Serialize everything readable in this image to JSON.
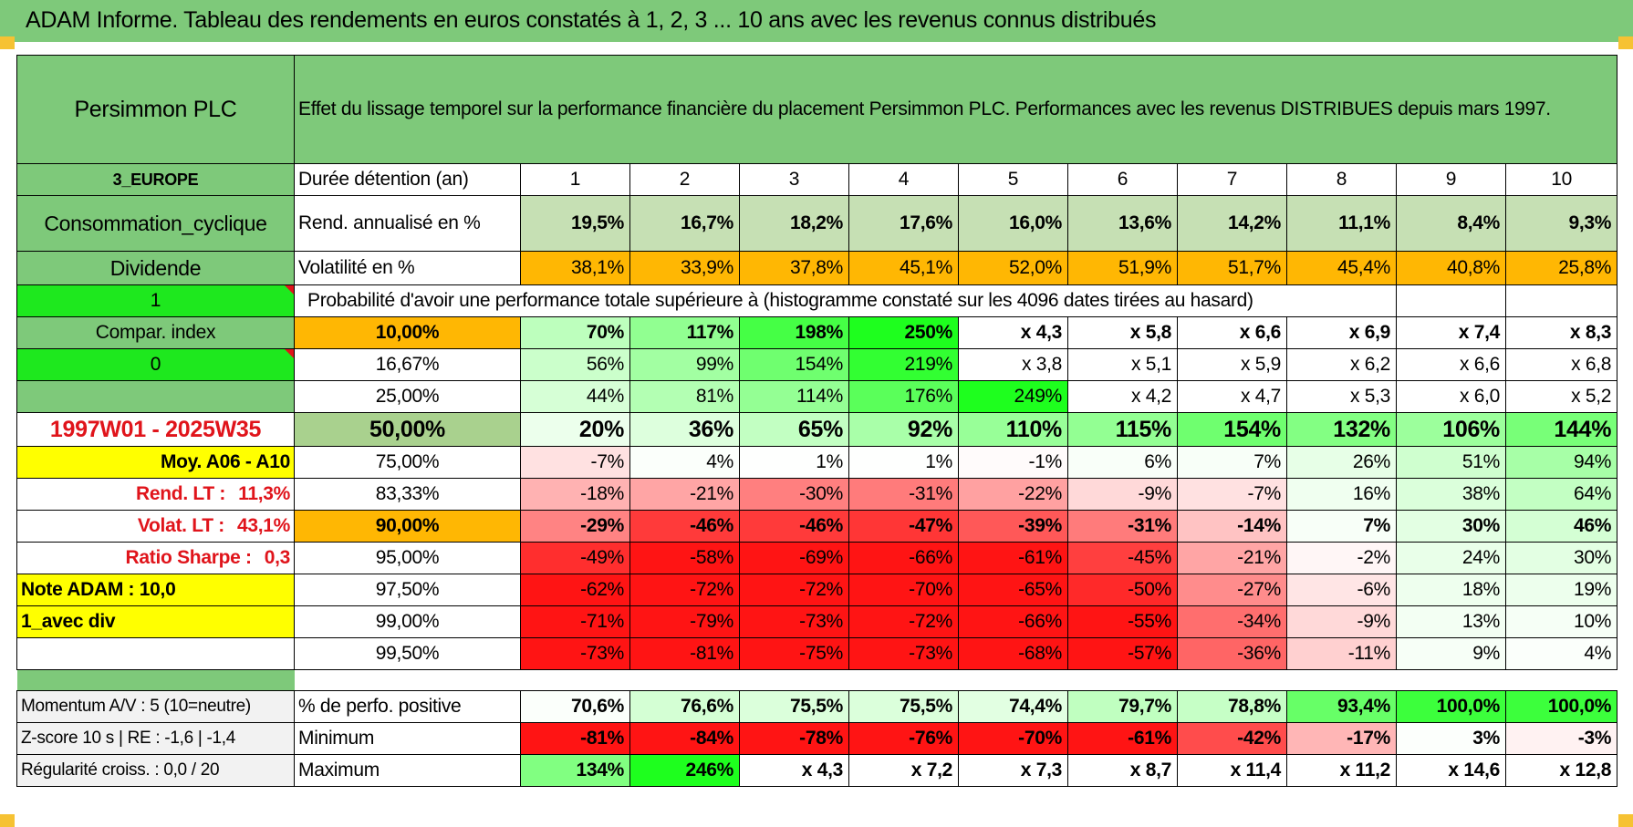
{
  "title": "ADAM Informe. Tableau des rendements en euros constatés à 1, 2, 3 ... 10 ans avec les revenus connus distribués",
  "left": {
    "name": "Persimmon PLC",
    "region": "3_EUROPE",
    "sector": "Consommation_cyclique",
    "type": "Dividende",
    "val1": "1",
    "compar_label": "Compar. index",
    "val0": "0",
    "period": "1997W01 - 2025W35",
    "moy": "Moy. A06 - A10",
    "rend_lt_label": "Rend. LT :",
    "rend_lt_val": "11,3%",
    "volat_lt_label": "Volat. LT :",
    "volat_lt_val": "43,1%",
    "sharpe_label": "Ratio Sharpe :",
    "sharpe_val": "0,3",
    "note": "Note ADAM : 10,0",
    "avec_div": "1_avec div",
    "momentum": "Momentum A/V : 5 (10=neutre)",
    "zscore": "Z-score 10 s | RE : -1,6 | -1,4",
    "regularite": "Régularité croiss. : 0,0 / 20"
  },
  "header_text": "Effet du lissage temporel sur la performance financière du placement Persimmon PLC. Performances avec les revenus DISTRIBUES depuis mars 1997.",
  "duree_label": "Durée détention (an)",
  "years": [
    "1",
    "2",
    "3",
    "4",
    "5",
    "6",
    "7",
    "8",
    "9",
    "10"
  ],
  "rend_label": "Rend. annualisé en %",
  "rend": [
    "19,5%",
    "16,7%",
    "18,2%",
    "17,6%",
    "16,0%",
    "13,6%",
    "14,2%",
    "11,1%",
    "8,4%",
    "9,3%"
  ],
  "vol_label": "Volatilité en %",
  "vol": [
    "38,1%",
    "33,9%",
    "37,8%",
    "45,1%",
    "52,0%",
    "51,9%",
    "51,7%",
    "45,4%",
    "40,8%",
    "25,8%"
  ],
  "prob_label": "Probabilité d'avoir une performance totale supérieure à (histogramme constaté sur les 4096 dates tirées au hasard)",
  "prob_rows": [
    {
      "pct": "10,00%",
      "vals": [
        "70%",
        "117%",
        "198%",
        "250%",
        "x 4,3",
        "x 5,8",
        "x 6,6",
        "x 6,9",
        "x 7,4",
        "x 8,3"
      ]
    },
    {
      "pct": "16,67%",
      "vals": [
        "56%",
        "99%",
        "154%",
        "219%",
        "x 3,8",
        "x 5,1",
        "x 5,9",
        "x 6,2",
        "x 6,6",
        "x 6,8"
      ]
    },
    {
      "pct": "25,00%",
      "vals": [
        "44%",
        "81%",
        "114%",
        "176%",
        "249%",
        "x 4,2",
        "x 4,7",
        "x 5,3",
        "x 6,0",
        "x 5,2"
      ]
    },
    {
      "pct": "50,00%",
      "vals": [
        "20%",
        "36%",
        "65%",
        "92%",
        "110%",
        "115%",
        "154%",
        "132%",
        "106%",
        "144%"
      ]
    },
    {
      "pct": "75,00%",
      "vals": [
        "-7%",
        "4%",
        "1%",
        "1%",
        "-1%",
        "6%",
        "7%",
        "26%",
        "51%",
        "94%"
      ]
    },
    {
      "pct": "83,33%",
      "vals": [
        "-18%",
        "-21%",
        "-30%",
        "-31%",
        "-22%",
        "-9%",
        "-7%",
        "16%",
        "38%",
        "64%"
      ]
    },
    {
      "pct": "90,00%",
      "vals": [
        "-29%",
        "-46%",
        "-46%",
        "-47%",
        "-39%",
        "-31%",
        "-14%",
        "7%",
        "30%",
        "46%"
      ]
    },
    {
      "pct": "95,00%",
      "vals": [
        "-49%",
        "-58%",
        "-69%",
        "-66%",
        "-61%",
        "-45%",
        "-21%",
        "-2%",
        "24%",
        "30%"
      ]
    },
    {
      "pct": "97,50%",
      "vals": [
        "-62%",
        "-72%",
        "-72%",
        "-70%",
        "-65%",
        "-50%",
        "-27%",
        "-6%",
        "18%",
        "19%"
      ]
    },
    {
      "pct": "99,00%",
      "vals": [
        "-71%",
        "-79%",
        "-73%",
        "-72%",
        "-66%",
        "-55%",
        "-34%",
        "-9%",
        "13%",
        "10%"
      ]
    },
    {
      "pct": "99,50%",
      "vals": [
        "-73%",
        "-81%",
        "-75%",
        "-73%",
        "-68%",
        "-57%",
        "-36%",
        "-11%",
        "9%",
        "4%"
      ]
    }
  ],
  "pos_label": "% de perfo. positive",
  "pos": [
    "70,6%",
    "76,6%",
    "75,5%",
    "75,5%",
    "74,4%",
    "79,7%",
    "78,8%",
    "93,4%",
    "100,0%",
    "100,0%"
  ],
  "min_label": "Minimum",
  "min": [
    "-81%",
    "-84%",
    "-78%",
    "-76%",
    "-70%",
    "-61%",
    "-42%",
    "-17%",
    "3%",
    "-3%"
  ],
  "max_label": "Maximum",
  "max": [
    "134%",
    "246%",
    "x 4,3",
    "x 7,2",
    "x 7,3",
    "x 8,7",
    "x 11,4",
    "x 11,2",
    "x 14,6",
    "x 12,8"
  ],
  "colors": {
    "title_green": "#7ec97a",
    "left_green": "#7ec97a",
    "bright_green": "#1ee81e",
    "orange": "#ffb703",
    "yellow": "#ffff00",
    "red_text": "#e0141b",
    "rend_bg": "#c6e0b4"
  }
}
